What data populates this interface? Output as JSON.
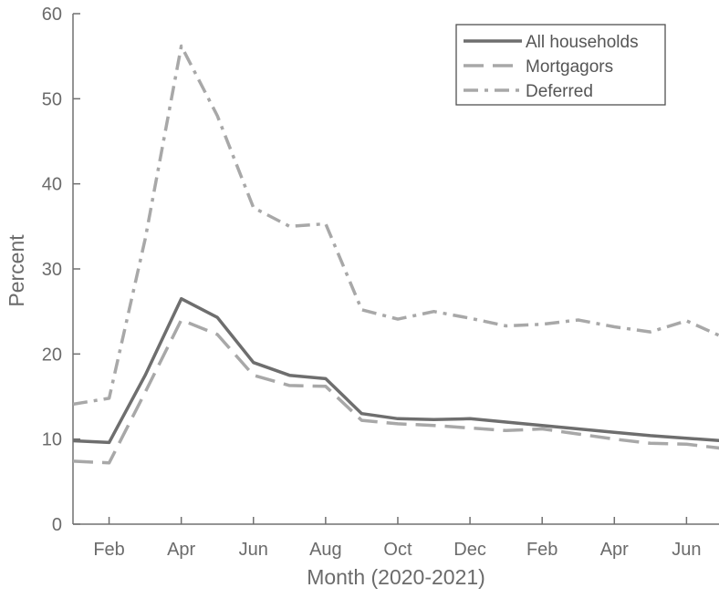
{
  "chart_data": {
    "type": "line",
    "title": "",
    "xlabel": "Month (2020-2021)",
    "ylabel": "Percent",
    "ylim": [
      0,
      60
    ],
    "yticks": [
      0,
      10,
      20,
      30,
      40,
      50,
      60
    ],
    "x_tick_labels": [
      "Feb",
      "Apr",
      "Jun",
      "Aug",
      "Oct",
      "Dec",
      "Feb",
      "Apr",
      "Jun"
    ],
    "x_tick_months": [
      1,
      3,
      5,
      7,
      9,
      11,
      13,
      15,
      17
    ],
    "xlim_months": [
      0,
      17.9
    ],
    "x_months": [
      0,
      1,
      2,
      3,
      4,
      5,
      6,
      7,
      8,
      9,
      10,
      11,
      12,
      13,
      14,
      15,
      16,
      17,
      18
    ],
    "series": [
      {
        "name": "All households",
        "style": "solid",
        "color": "#6e6e6e",
        "values": [
          9.8,
          9.6,
          17.5,
          26.5,
          24.3,
          19.0,
          17.5,
          17.1,
          13.0,
          12.4,
          12.3,
          12.4,
          12.0,
          11.6,
          11.2,
          10.8,
          10.4,
          10.1,
          9.8
        ]
      },
      {
        "name": "Mortgagors",
        "style": "dashed",
        "color": "#a8a8a8",
        "values": [
          7.4,
          7.2,
          15.5,
          24.0,
          22.3,
          17.5,
          16.3,
          16.2,
          12.2,
          11.8,
          11.6,
          11.3,
          11.0,
          11.2,
          10.6,
          10.0,
          9.5,
          9.4,
          8.9
        ]
      },
      {
        "name": "Deferred",
        "style": "dashdot",
        "color": "#a8a8a8",
        "values": [
          14.1,
          14.8,
          33.5,
          56.2,
          48.0,
          37.2,
          35.0,
          35.3,
          25.2,
          24.1,
          25.0,
          24.2,
          23.3,
          23.5,
          24.0,
          23.2,
          22.6,
          23.9,
          22.0
        ]
      }
    ],
    "legend_position": "top-right",
    "grid": false
  }
}
